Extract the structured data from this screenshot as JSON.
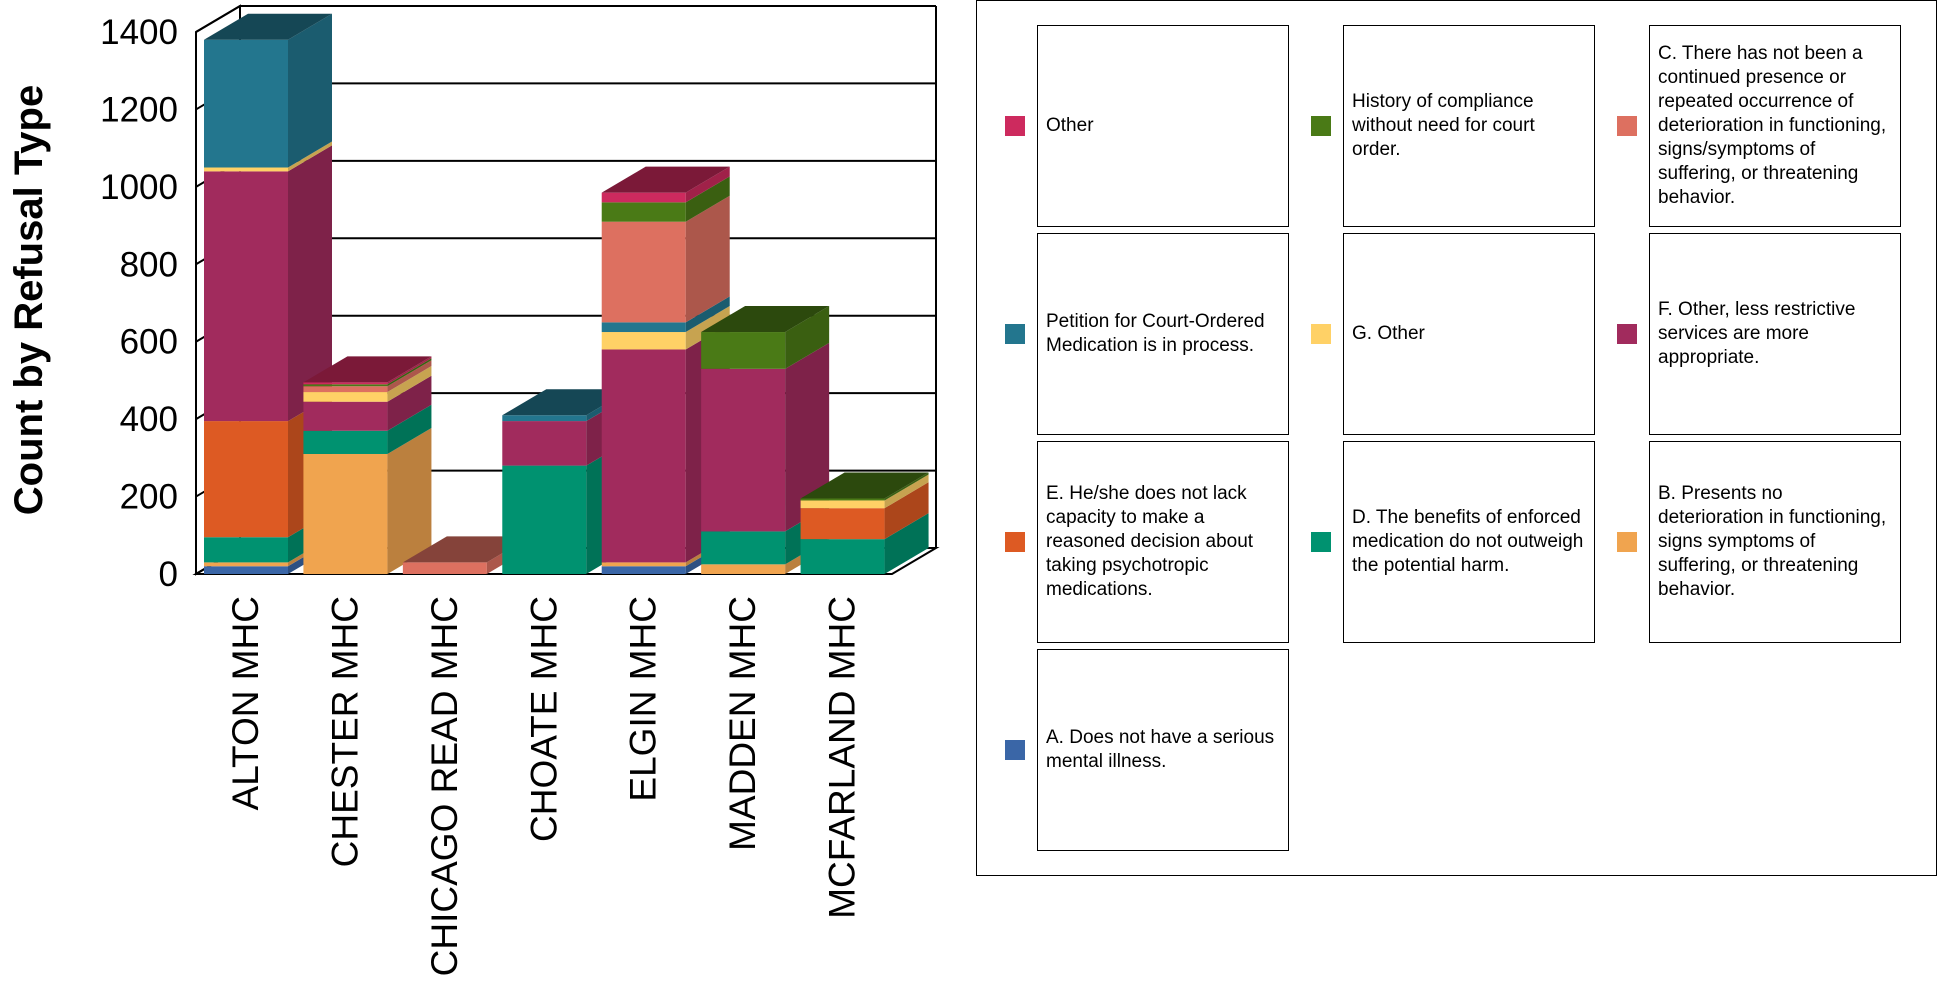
{
  "chart_data": {
    "type": "bar",
    "stacked": true,
    "three_d": true,
    "title": "",
    "xlabel": "",
    "ylabel": "Count by Refusal Type",
    "ylim": [
      0,
      1400
    ],
    "yticks": [
      0,
      200,
      400,
      600,
      800,
      1000,
      1200,
      1400
    ],
    "grid": true,
    "legend_position": "right",
    "categories": [
      "ALTON MHC",
      "CHESTER MHC",
      "CHICAGO READ MHC",
      "CHOATE MHC",
      "ELGIN MHC",
      "MADDEN MHC",
      "MCFARLAND MHC"
    ],
    "series": [
      {
        "name": "A. Does not have a serious mental illness.",
        "color": "#3a66a7",
        "values": [
          20,
          0,
          0,
          0,
          20,
          0,
          0
        ]
      },
      {
        "name": "B. Presents no deterioration in functioning, signs symptoms of suffering, or threatening behavior.",
        "color": "#f0a44f",
        "values": [
          10,
          310,
          0,
          0,
          10,
          25,
          0
        ]
      },
      {
        "name": "D. The benefits of enforced medication do not outweigh the potential harm.",
        "color": "#009270",
        "values": [
          65,
          60,
          0,
          280,
          0,
          85,
          90
        ]
      },
      {
        "name": "E. He/she does not lack capacity to make a reasoned decision about taking psychotropic medications.",
        "color": "#dd5a23",
        "values": [
          300,
          0,
          0,
          0,
          0,
          0,
          80
        ]
      },
      {
        "name": "F. Other, less restrictive services are more appropriate.",
        "color": "#a12b5d",
        "values": [
          645,
          75,
          0,
          115,
          550,
          420,
          0
        ]
      },
      {
        "name": "G. Other",
        "color": "#ffd166",
        "values": [
          10,
          25,
          0,
          0,
          45,
          0,
          20
        ]
      },
      {
        "name": "Petition for Court-Ordered Medication is in process.",
        "color": "#23768e",
        "values": [
          330,
          0,
          0,
          15,
          25,
          0,
          0
        ]
      },
      {
        "name": "C. There has not been a continued presence or repeated occurrence of deterioration in functioning, signs/symptoms of suffering, or threatening behavior.",
        "color": "#dd7060",
        "values": [
          0,
          15,
          30,
          0,
          260,
          0,
          0
        ]
      },
      {
        "name": "History of compliance without need for court order.",
        "color": "#4a7a16",
        "values": [
          0,
          5,
          0,
          0,
          50,
          95,
          5
        ]
      },
      {
        "name": "Other",
        "color": "#cd2a5e",
        "values": [
          0,
          5,
          0,
          0,
          25,
          0,
          0
        ]
      }
    ]
  },
  "legend": {
    "items": [
      {
        "label": "Other",
        "color": "#cd2a5e"
      },
      {
        "label": "History of compliance without need for court order.",
        "color": "#4a7a16"
      },
      {
        "label": "C. There has not been a continued presence or repeated occurrence of deterioration in functioning, signs/symptoms of suffering, or threatening behavior.",
        "color": "#dd7060"
      },
      {
        "label": "Petition for Court-Ordered Medication is in process.",
        "color": "#23768e"
      },
      {
        "label": "G. Other",
        "color": "#ffd166"
      },
      {
        "label": "F. Other, less restrictive services are more appropriate.",
        "color": "#a12b5d"
      },
      {
        "label": "E. He/she does not lack capacity to make a reasoned decision about taking psychotropic medications.",
        "color": "#dd5a23"
      },
      {
        "label": "D. The benefits of enforced medication do not outweigh the potential harm.",
        "color": "#009270"
      },
      {
        "label": "B. Presents no deterioration in functioning, signs symptoms of suffering, or threatening behavior.",
        "color": "#f0a44f"
      },
      {
        "label": "A. Does not have a serious mental illness.",
        "color": "#3a66a7"
      }
    ]
  }
}
